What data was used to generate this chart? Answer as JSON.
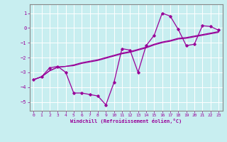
{
  "xlabel": "Windchill (Refroidissement éolien,°C)",
  "bg_color": "#c8eef0",
  "line_color": "#990099",
  "grid_color": "#ffffff",
  "spine_color": "#888888",
  "xlim": [
    -0.5,
    23.5
  ],
  "ylim": [
    -5.6,
    1.6
  ],
  "yticks": [
    1,
    0,
    -1,
    -2,
    -3,
    -4,
    -5
  ],
  "xticks": [
    0,
    1,
    2,
    3,
    4,
    5,
    6,
    7,
    8,
    9,
    10,
    11,
    12,
    13,
    14,
    15,
    16,
    17,
    18,
    19,
    20,
    21,
    22,
    23
  ],
  "series1_x": [
    0,
    1,
    2,
    3,
    4,
    5,
    6,
    7,
    8,
    9,
    10,
    11,
    12,
    13,
    14,
    15,
    16,
    17,
    18,
    19,
    20,
    21,
    22,
    23
  ],
  "series1_y": [
    -3.5,
    -3.3,
    -2.7,
    -2.6,
    -3.0,
    -4.4,
    -4.4,
    -4.5,
    -4.6,
    -5.2,
    -3.7,
    -1.4,
    -1.5,
    -3.0,
    -1.2,
    -0.5,
    1.0,
    0.8,
    -0.1,
    -1.2,
    -1.1,
    0.15,
    0.1,
    -0.15
  ],
  "series2_x": [
    0,
    1,
    2,
    3,
    4,
    5,
    6,
    7,
    8,
    9,
    10,
    11,
    12,
    13,
    14,
    15,
    16,
    17,
    18,
    19,
    20,
    21,
    22,
    23
  ],
  "series2_y": [
    -3.5,
    -3.3,
    -2.9,
    -2.65,
    -2.6,
    -2.5,
    -2.35,
    -2.25,
    -2.15,
    -2.0,
    -1.85,
    -1.7,
    -1.6,
    -1.45,
    -1.3,
    -1.1,
    -0.95,
    -0.85,
    -0.7,
    -0.65,
    -0.55,
    -0.45,
    -0.35,
    -0.25
  ],
  "series3_x": [
    0,
    1,
    2,
    3,
    4,
    5,
    6,
    7,
    8,
    9,
    10,
    11,
    12,
    13,
    14,
    15,
    16,
    17,
    18,
    19,
    20,
    21,
    22,
    23
  ],
  "series3_y": [
    -3.5,
    -3.3,
    -2.9,
    -2.65,
    -2.6,
    -2.55,
    -2.4,
    -2.3,
    -2.2,
    -2.05,
    -1.9,
    -1.75,
    -1.65,
    -1.5,
    -1.35,
    -1.15,
    -1.0,
    -0.9,
    -0.75,
    -0.7,
    -0.6,
    -0.5,
    -0.4,
    -0.3
  ]
}
